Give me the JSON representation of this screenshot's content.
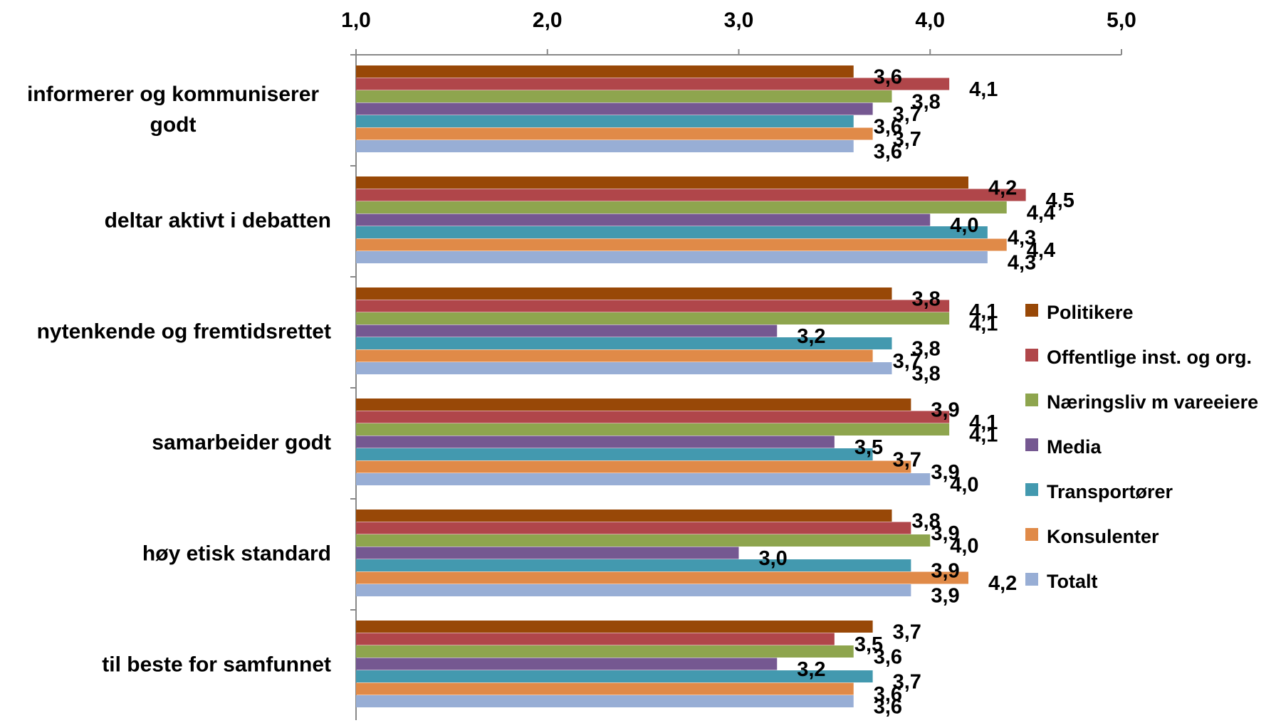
{
  "chart_data": {
    "type": "bar",
    "orientation": "horizontal",
    "xlim": [
      1.0,
      5.0
    ],
    "x_ticks": [
      "1,0",
      "2,0",
      "3,0",
      "4,0",
      "5,0"
    ],
    "x_axis_position": "top",
    "grid": false,
    "legend_position": "right",
    "categories": [
      [
        "informerer og kommuniserer",
        "godt"
      ],
      [
        "deltar aktivt  i debatten"
      ],
      [
        "nytenkende og fremtidsrettet"
      ],
      [
        "samarbeider godt"
      ],
      [
        "høy etisk standard"
      ],
      [
        "til beste for samfunnet"
      ]
    ],
    "series": [
      {
        "name": "Politikere",
        "color": "#984807",
        "values": [
          3.6,
          4.2,
          3.8,
          3.9,
          3.8,
          3.7
        ]
      },
      {
        "name": "Offentlige inst. og org.",
        "color": "#B0464A",
        "values": [
          4.1,
          4.5,
          4.1,
          4.1,
          3.9,
          3.5
        ]
      },
      {
        "name": "Næringsliv m vareeiere",
        "color": "#8EA54E",
        "values": [
          3.8,
          4.4,
          4.1,
          4.1,
          4.0,
          3.6
        ]
      },
      {
        "name": "Media",
        "color": "#755891",
        "values": [
          3.7,
          4.0,
          3.2,
          3.5,
          3.0,
          3.2
        ]
      },
      {
        "name": "Transportører",
        "color": "#4399AF",
        "values": [
          3.6,
          4.3,
          3.8,
          3.7,
          3.9,
          3.7
        ]
      },
      {
        "name": "Konsulenter",
        "color": "#E08A48",
        "values": [
          3.7,
          4.4,
          3.7,
          3.9,
          4.2,
          3.6
        ]
      },
      {
        "name": "Totalt",
        "color": "#98AED5",
        "values": [
          3.6,
          4.3,
          3.8,
          4.0,
          3.9,
          3.6
        ]
      }
    ]
  }
}
